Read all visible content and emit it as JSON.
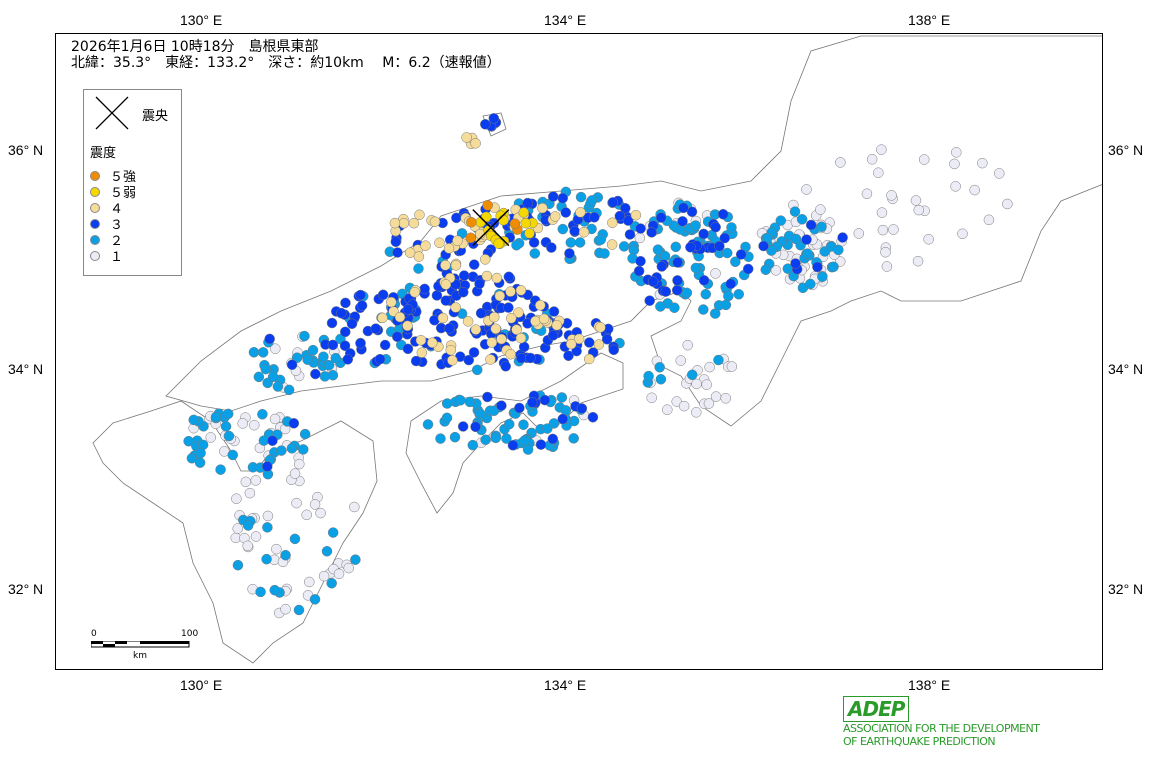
{
  "header": {
    "line1": "2026年1月6日 10時18分　島根県東部",
    "line2": "北緯：35.3°　東経：133.2°　深さ：約10km　 M：6.2（速報値）"
  },
  "epicenter": {
    "lat": 35.3,
    "lon": 133.2
  },
  "legend": {
    "epicenter_label": "震央",
    "intensity_title": "震度",
    "items": [
      {
        "label": "５強",
        "color": "#f08c00"
      },
      {
        "label": "５弱",
        "color": "#f5d800"
      },
      {
        "label": "４",
        "color": "#f5dc9a"
      },
      {
        "label": "３",
        "color": "#0a3cf0"
      },
      {
        "label": "２",
        "color": "#0aa0e6"
      },
      {
        "label": "１",
        "color": "#ececf6"
      }
    ]
  },
  "axes": {
    "lon_top": [
      "130° E",
      "134° E",
      "138° E"
    ],
    "lon_bottom": [
      "130° E",
      "134° E",
      "138° E"
    ],
    "lat_left": [
      "36° N",
      "34° N",
      "32° N"
    ],
    "lat_right": [
      "36° N",
      "34° N",
      "32° N"
    ]
  },
  "scale_bar": {
    "start": "0",
    "end": "100",
    "unit": "km"
  },
  "logo": {
    "text": "ADEP",
    "line1": "ASSOCIATION  FOR THE DEVELOPMENT",
    "line2": "OF EARTHQUAKE PREDICTION"
  }
}
